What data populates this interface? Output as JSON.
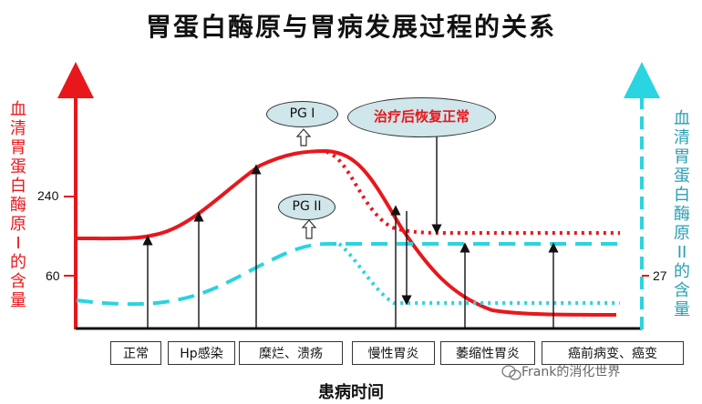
{
  "title": "胃蛋白酶原与胃病发展过程的关系",
  "left_axis_label": "血清胃蛋白酶原Ⅰ的含量",
  "right_axis_label": "血清胃蛋白酶原II的含量",
  "left_ticks": [
    "240",
    "60"
  ],
  "right_tick": "27",
  "x_axis_title": "患病时间",
  "stages": [
    "正常",
    "Hp感染",
    "糜烂、溃疡",
    "慢性胃炎",
    "萎缩性胃炎",
    "癌前病变、癌变"
  ],
  "bubbles": {
    "pg1": "PG Ⅰ",
    "pg2": "PG II",
    "recover": "治疗后恢复正常"
  },
  "watermark": "Frank的消化世界",
  "colors": {
    "pg1": "#e8171c",
    "pg2": "#2ad4e0",
    "axis": "#111111"
  }
}
